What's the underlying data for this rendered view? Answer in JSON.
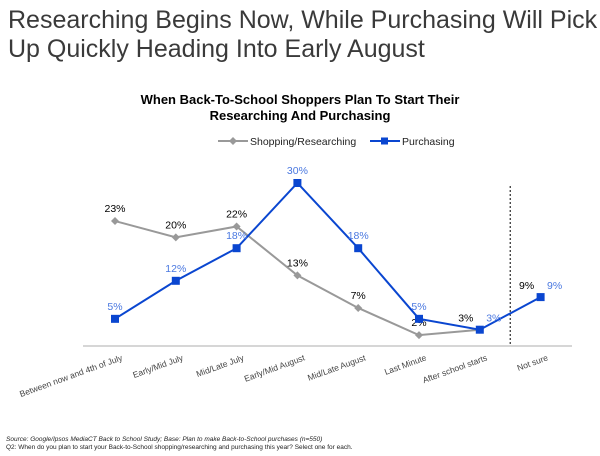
{
  "title": "Researching Begins Now, While Purchasing Will Pick Up Quickly Heading Into Early August",
  "chart_data": {
    "type": "line",
    "title": "When Back-To-School Shoppers Plan To Start Their Researching And Purchasing",
    "categories": [
      "Between now and 4th of July",
      "Early/Mid July",
      "Mid/Late July",
      "Early/Mid August",
      "Mid/Late August",
      "Last Minute",
      "After school starts",
      "Not sure"
    ],
    "series": [
      {
        "name": "Shopping/Researching",
        "values": [
          23,
          20,
          22,
          13,
          7,
          2,
          3,
          9
        ],
        "color": "#999999",
        "marker": "diamond",
        "label_color": "#000000"
      },
      {
        "name": "Purchasing",
        "values": [
          5,
          12,
          18,
          30,
          18,
          5,
          3,
          9
        ],
        "color": "#0a46d0",
        "marker": "square",
        "label_color": "#4a78e0"
      }
    ],
    "value_format": "percent",
    "ylim": [
      0,
      30
    ],
    "grid": false,
    "legend": "top",
    "separator_before": "Not sure"
  },
  "footnote": {
    "source": "Source: Google/Ipsos MediaCT Back to School Study; Base: Plan to make Back-to-School purchases (n=550)",
    "question": "Q2: When do you plan to start your Back-to-School shopping/researching and purchasing this year?  Select one for each."
  }
}
